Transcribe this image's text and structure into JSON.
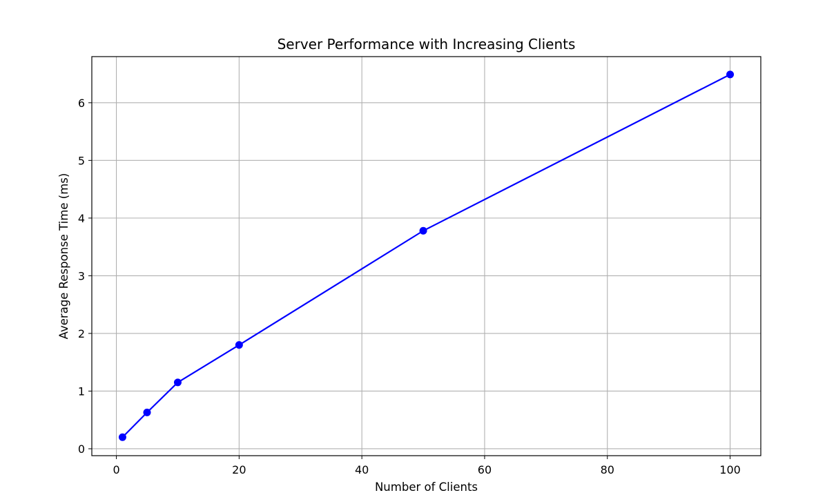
{
  "chart_data": {
    "type": "line",
    "title": "Server Performance with Increasing Clients",
    "xlabel": "Number of Clients",
    "ylabel": "Average Response Time (ms)",
    "xlim": [
      -4,
      105
    ],
    "ylim": [
      -0.12,
      6.8
    ],
    "xticks": [
      0,
      20,
      40,
      60,
      80,
      100
    ],
    "yticks": [
      0,
      1,
      2,
      3,
      4,
      5,
      6
    ],
    "grid": true,
    "series": [
      {
        "color": "#0000ff",
        "marker": "circle",
        "x": [
          1,
          5,
          10,
          20,
          50,
          100
        ],
        "y": [
          0.2,
          0.63,
          1.15,
          1.8,
          3.78,
          6.49
        ]
      }
    ]
  }
}
